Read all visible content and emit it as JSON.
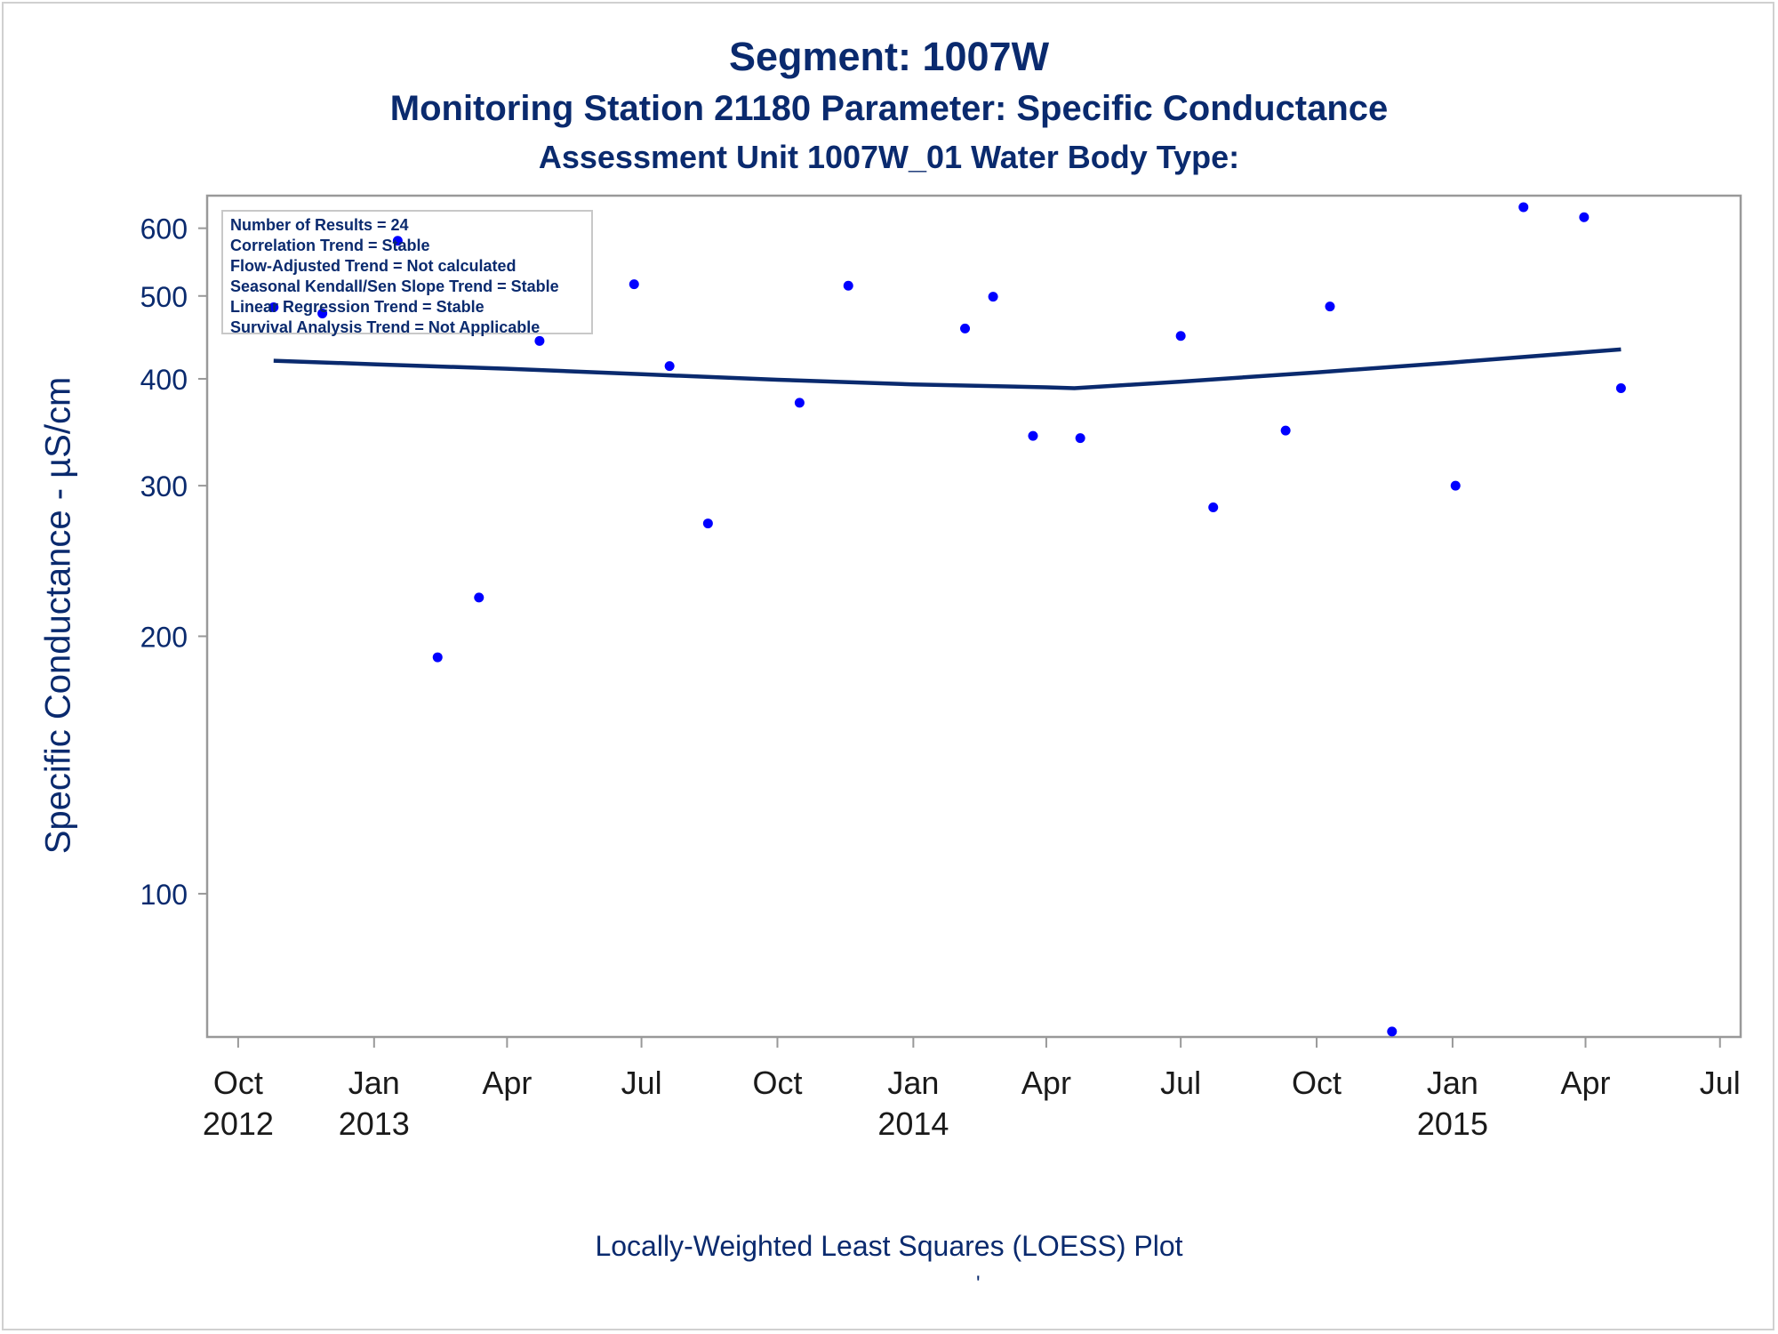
{
  "titles": {
    "line1": "Segment: 1007W",
    "line2": "Monitoring Station 21180 Parameter: Specific Conductance",
    "line3": "Assessment Unit 1007W_01   Water Body Type:"
  },
  "footnote": "Locally-Weighted Least Squares (LOESS) Plot",
  "footnote_mark": "'",
  "stats": [
    "Number of Results = 24",
    "Correlation Trend = Stable",
    "Flow-Adjusted Trend = Not calculated",
    "Seasonal Kendall/Sen Slope Trend = Stable",
    "Linear Regression Trend = Stable",
    "Survival Analysis Trend = Not Applicable"
  ],
  "colors": {
    "text": "#0a2a6e",
    "points": "#0000ff",
    "loess": "#0a2a6e",
    "axis": "#999999"
  },
  "chart_data": {
    "type": "scatter",
    "ylabel": "Specific Conductance -  µS/cm",
    "xlabel": "",
    "y_scale": "log",
    "ylim": [
      68,
      655
    ],
    "xlim": [
      "2012-09-10",
      "2015-07-15"
    ],
    "y_ticks": [
      100,
      200,
      300,
      400,
      500,
      600
    ],
    "x_ticks": [
      {
        "date": "2012-10-01",
        "month": "Oct",
        "year": "2012"
      },
      {
        "date": "2013-01-01",
        "month": "Jan",
        "year": "2013"
      },
      {
        "date": "2013-04-01",
        "month": "Apr",
        "year": ""
      },
      {
        "date": "2013-07-01",
        "month": "Jul",
        "year": ""
      },
      {
        "date": "2013-10-01",
        "month": "Oct",
        "year": ""
      },
      {
        "date": "2014-01-01",
        "month": "Jan",
        "year": "2014"
      },
      {
        "date": "2014-04-01",
        "month": "Apr",
        "year": ""
      },
      {
        "date": "2014-07-01",
        "month": "Jul",
        "year": ""
      },
      {
        "date": "2014-10-01",
        "month": "Oct",
        "year": ""
      },
      {
        "date": "2015-01-01",
        "month": "Jan",
        "year": "2015"
      },
      {
        "date": "2015-04-01",
        "month": "Apr",
        "year": ""
      },
      {
        "date": "2015-07-01",
        "month": "Jul",
        "year": ""
      }
    ],
    "points": [
      {
        "x": "2012-10-25",
        "y": 485
      },
      {
        "x": "2012-11-27",
        "y": 477
      },
      {
        "x": "2013-01-17",
        "y": 580
      },
      {
        "x": "2013-02-13",
        "y": 189
      },
      {
        "x": "2013-03-13",
        "y": 222
      },
      {
        "x": "2013-04-23",
        "y": 443
      },
      {
        "x": "2013-06-26",
        "y": 516
      },
      {
        "x": "2013-07-20",
        "y": 414
      },
      {
        "x": "2013-08-15",
        "y": 271
      },
      {
        "x": "2013-10-16",
        "y": 375
      },
      {
        "x": "2013-11-18",
        "y": 514
      },
      {
        "x": "2014-02-05",
        "y": 458
      },
      {
        "x": "2014-02-24",
        "y": 499
      },
      {
        "x": "2014-03-23",
        "y": 343
      },
      {
        "x": "2014-04-24",
        "y": 341
      },
      {
        "x": "2014-07-01",
        "y": 449
      },
      {
        "x": "2014-07-23",
        "y": 283
      },
      {
        "x": "2014-09-10",
        "y": 348
      },
      {
        "x": "2014-10-10",
        "y": 486
      },
      {
        "x": "2014-11-21",
        "y": 69
      },
      {
        "x": "2015-01-03",
        "y": 300
      },
      {
        "x": "2015-02-18",
        "y": 635
      },
      {
        "x": "2015-03-31",
        "y": 618
      },
      {
        "x": "2015-04-25",
        "y": 390
      }
    ],
    "loess": [
      {
        "x": "2012-10-25",
        "y": 420
      },
      {
        "x": "2013-01-01",
        "y": 416
      },
      {
        "x": "2013-04-01",
        "y": 411
      },
      {
        "x": "2013-07-01",
        "y": 405
      },
      {
        "x": "2013-10-01",
        "y": 399
      },
      {
        "x": "2014-01-01",
        "y": 394
      },
      {
        "x": "2014-04-01",
        "y": 391
      },
      {
        "x": "2014-04-20",
        "y": 390
      },
      {
        "x": "2014-07-01",
        "y": 397
      },
      {
        "x": "2014-10-01",
        "y": 407
      },
      {
        "x": "2015-01-01",
        "y": 418
      },
      {
        "x": "2015-04-25",
        "y": 433
      }
    ]
  }
}
